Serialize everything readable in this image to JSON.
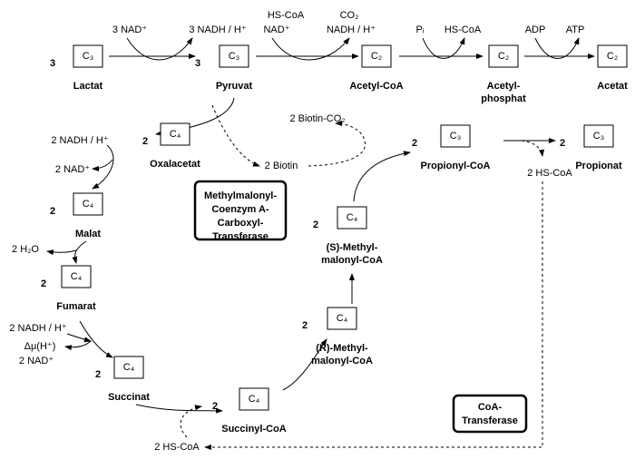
{
  "compounds": [
    {
      "stoichiometry": "3",
      "carbon": "C₃",
      "label": [
        "Lactat"
      ]
    },
    {
      "stoichiometry": "3",
      "carbon": "C₃",
      "label": [
        "Pyruvat"
      ]
    },
    {
      "carbon": "C₂",
      "label": [
        "Acetyl-CoA"
      ]
    },
    {
      "carbon": "C₂",
      "label": [
        "Acetyl-",
        "phosphat"
      ]
    },
    {
      "carbon": "C₂",
      "label": [
        "Acetat"
      ]
    },
    {
      "stoichiometry": "2",
      "carbon": "C₄",
      "label": [
        "Oxalacetat"
      ]
    },
    {
      "stoichiometry": "2",
      "carbon": "C₄",
      "label": [
        "Malat"
      ]
    },
    {
      "stoichiometry": "2",
      "carbon": "C₄",
      "label": [
        "Fumarat"
      ]
    },
    {
      "stoichiometry": "2",
      "carbon": "C₄",
      "label": [
        "Succinat"
      ]
    },
    {
      "stoichiometry": "2",
      "carbon": "C₄",
      "label": [
        "Succinyl-CoA"
      ]
    },
    {
      "stoichiometry": "2",
      "carbon": "C₄",
      "label": [
        "(R)-Methyl-",
        "malonyl-CoA"
      ]
    },
    {
      "stoichiometry": "2",
      "carbon": "C₄",
      "label": [
        "(S)-Methyl-",
        "malonyl-CoA"
      ]
    },
    {
      "stoichiometry": "2",
      "carbon": "C₃",
      "label": [
        "Propionyl-CoA"
      ]
    },
    {
      "stoichiometry": "2",
      "carbon": "C₃",
      "label": [
        "Propionat"
      ]
    }
  ],
  "cofactors": [
    "3 NAD⁺",
    "3 NADH / H⁺",
    "HS-CoA",
    "NAD⁺",
    "CO₂",
    "NADH / H⁺",
    "Pᵢ",
    "HS-CoA",
    "ADP",
    "ATP",
    "2 NADH / H⁺",
    "2 NAD⁺",
    "2 H₂O",
    "2 NADH / H⁺",
    "Δμ(H⁺)",
    "2 NAD⁺",
    "2 Biotin-CO₂",
    "2 Biotin",
    "2 HS-CoA",
    "2 HS-CoA"
  ],
  "enzymes": [
    {
      "label": [
        "Methylmalonyl-",
        "Coenzym A-",
        "Carboxyl-",
        "Transferase"
      ]
    },
    {
      "label": [
        "CoA-",
        "Transferase"
      ]
    }
  ]
}
